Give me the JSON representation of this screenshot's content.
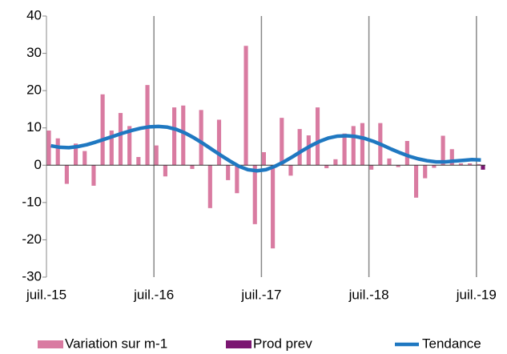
{
  "chart_data": {
    "type": "bar",
    "categories": [
      "juil.-15",
      null,
      null,
      null,
      null,
      null,
      null,
      null,
      null,
      null,
      null,
      null,
      "juil.-16",
      null,
      null,
      null,
      null,
      null,
      null,
      null,
      null,
      null,
      null,
      null,
      "juil.-17",
      null,
      null,
      null,
      null,
      null,
      null,
      null,
      null,
      null,
      null,
      null,
      "juil.-18",
      null,
      null,
      null,
      null,
      null,
      null,
      null,
      null,
      null,
      null,
      null,
      "juil.-19"
    ],
    "series": [
      {
        "name": "Variation sur m-1",
        "type": "bar",
        "color": "#d97ba1",
        "values": [
          9.3,
          7.2,
          -5,
          5.8,
          3.8,
          -5.5,
          19,
          9.3,
          14,
          10.5,
          2.2,
          21.5,
          5.3,
          -3,
          15.5,
          16,
          -1,
          14.8,
          -11.5,
          12.2,
          -4,
          -7.5,
          32,
          -15.8,
          3.5,
          -22.3,
          12.7,
          -2.8,
          9.7,
          8,
          15.5,
          -0.8,
          1.6,
          8.5,
          10.5,
          11.3,
          -1.2,
          11.3,
          1.8,
          -0.5,
          6.5,
          -8.7,
          -3.5,
          -0.7,
          7.9,
          4.3,
          0.5,
          0.5,
          0.3
        ]
      },
      {
        "name": "Prod prev",
        "type": "bar",
        "color": "#7b1771",
        "values": [
          null,
          null,
          null,
          null,
          null,
          null,
          null,
          null,
          null,
          null,
          null,
          null,
          null,
          null,
          null,
          null,
          null,
          null,
          null,
          null,
          null,
          null,
          null,
          null,
          null,
          null,
          null,
          null,
          null,
          null,
          null,
          null,
          null,
          null,
          null,
          null,
          null,
          null,
          null,
          null,
          null,
          null,
          null,
          null,
          null,
          null,
          null,
          null,
          -1.2
        ]
      },
      {
        "name": "Tendance",
        "type": "line",
        "color": "#1f78c1",
        "values": [
          5.2,
          4.8,
          4.7,
          5,
          5.5,
          6.2,
          7,
          7.8,
          8.6,
          9.3,
          9.9,
          10.3,
          10.4,
          10.2,
          9.6,
          8.6,
          7.3,
          5.8,
          4.2,
          2.6,
          1.1,
          -0.3,
          -1.2,
          -1.5,
          -1.2,
          -0.3,
          0.9,
          2.3,
          3.8,
          5.2,
          6.4,
          7.3,
          7.8,
          7.9,
          7.7,
          7.2,
          6.4,
          5.4,
          4.3,
          3.3,
          2.4,
          1.7,
          1.2,
          0.9,
          0.9,
          1.1,
          1.3,
          1.5,
          1.4
        ]
      }
    ],
    "ylim": [
      -30,
      40
    ],
    "yticks": [
      -30,
      -20,
      -10,
      0,
      10,
      20,
      30,
      40
    ],
    "grid": "x",
    "legend": "bottom"
  }
}
